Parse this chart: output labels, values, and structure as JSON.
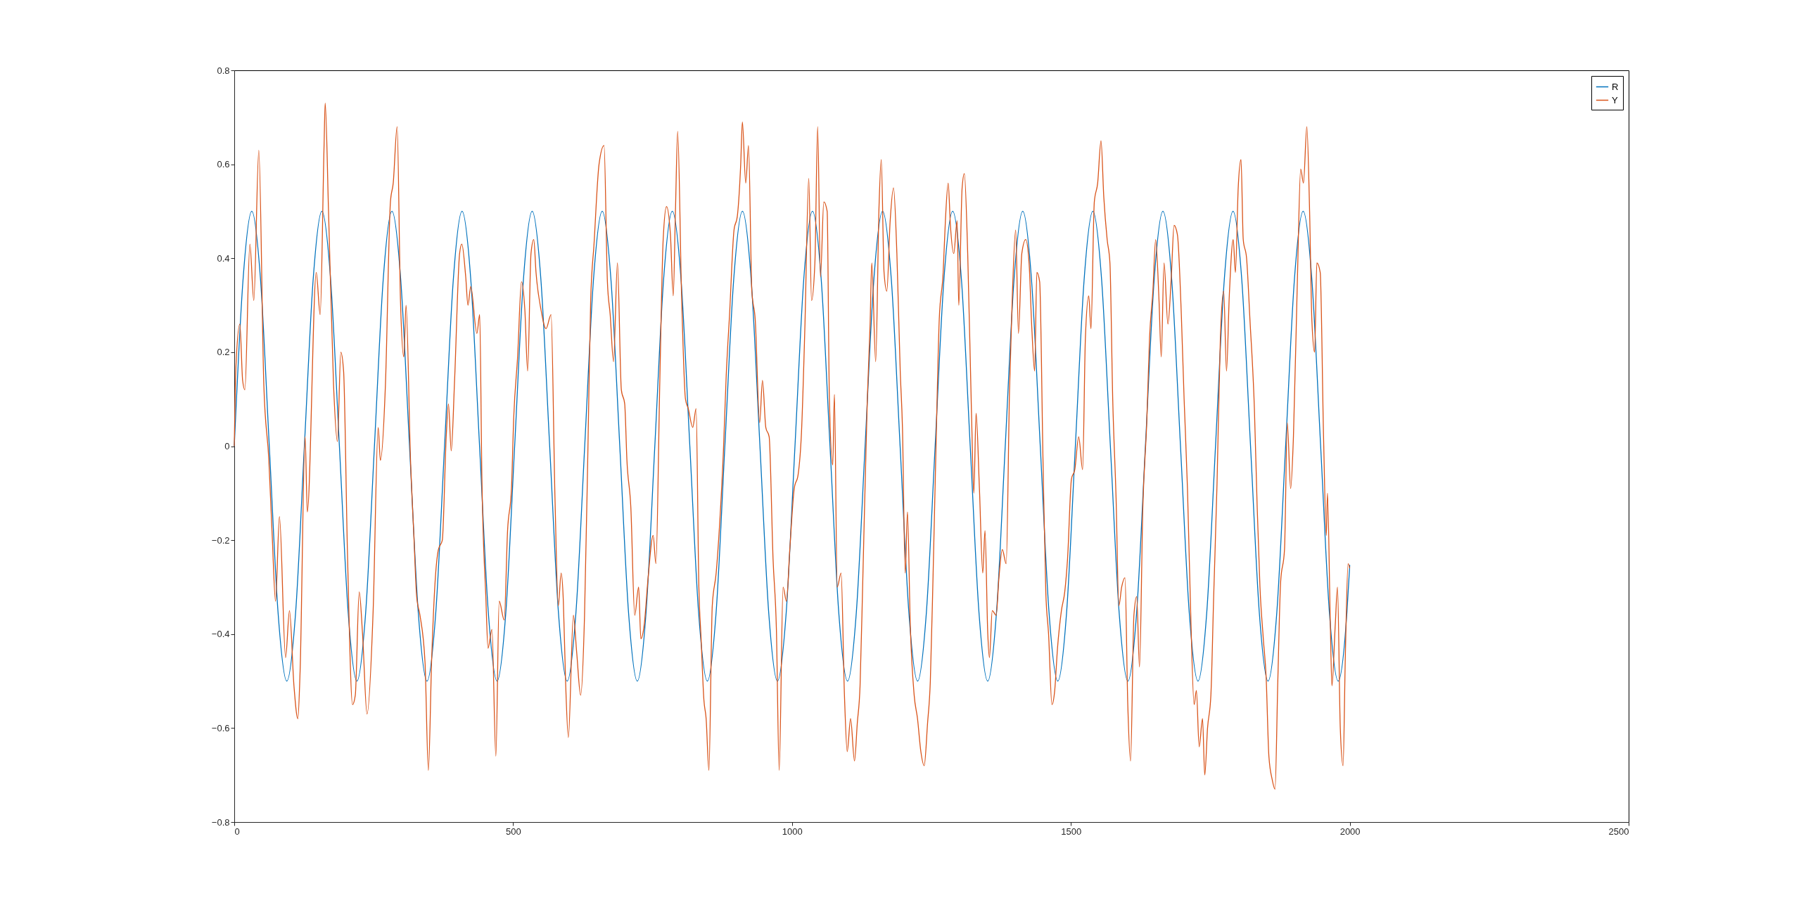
{
  "chart_data": {
    "type": "line",
    "xlim": [
      0,
      2500
    ],
    "ylim": [
      -0.8,
      0.8
    ],
    "xticks": [
      0,
      500,
      1000,
      1500,
      2000,
      2500
    ],
    "yticks": [
      -0.8,
      -0.6,
      -0.4,
      -0.2,
      0,
      0.2,
      0.4,
      0.6,
      0.8
    ],
    "grid": false,
    "legend": "top right",
    "line_style": "solid",
    "marker": "none",
    "series": [
      {
        "name": "R",
        "color": "#0072bd",
        "x": [
          0,
          15.7,
          31.4,
          47.1,
          62.8,
          78.5,
          94.2,
          110.0,
          125.7,
          141.4,
          157.1,
          172.8,
          188.5,
          204.2,
          219.9,
          235.6,
          251.3,
          267.0,
          282.7,
          298.5,
          314.2,
          329.9,
          345.6,
          361.3,
          377.0,
          392.7,
          408.4,
          424.1,
          439.8,
          455.5,
          471.2,
          486.9,
          502.7,
          518.4,
          534.1,
          549.8,
          565.5,
          581.2,
          596.9,
          612.6,
          628.3,
          644.0,
          659.7,
          675.4,
          691.2,
          706.9,
          722.6,
          738.3,
          754.0,
          769.7,
          785.4,
          801.1,
          816.8,
          832.5,
          848.2,
          863.9,
          879.6,
          895.4,
          911.1,
          926.8,
          942.5,
          958.2,
          973.9,
          989.6,
          1005.3,
          1021.0,
          1036.7,
          1052.4,
          1068.1,
          1083.8,
          1099.6,
          1115.3,
          1131.0,
          1146.7,
          1162.4,
          1178.1,
          1193.8,
          1209.5,
          1225.2,
          1240.9,
          1256.6,
          1272.3,
          1288.1,
          1303.8,
          1319.5,
          1335.2,
          1350.9,
          1366.6,
          1382.3,
          1398.0,
          1413.7,
          1429.4,
          1445.1,
          1460.8,
          1476.5,
          1492.3,
          1508.0,
          1523.7,
          1539.4,
          1555.1,
          1570.8,
          1586.5,
          1602.2,
          1617.9,
          1633.6,
          1649.3,
          1665.0,
          1680.8,
          1696.5,
          1712.2,
          1727.9,
          1743.6,
          1759.3,
          1775.0,
          1790.7,
          1806.4,
          1822.1,
          1837.8,
          1853.5,
          1869.2,
          1885.0,
          1900.7,
          1916.4,
          1932.1,
          1947.8,
          1963.5,
          1979.2,
          1994.9,
          2000
        ],
        "values": [
          0,
          0.354,
          0.5,
          0.354,
          0,
          -0.354,
          -0.5,
          -0.354,
          0,
          0.354,
          0.5,
          0.354,
          0,
          -0.354,
          -0.5,
          -0.354,
          0,
          0.354,
          0.5,
          0.354,
          0,
          -0.354,
          -0.5,
          -0.354,
          0,
          0.354,
          0.5,
          0.354,
          0,
          -0.354,
          -0.5,
          -0.354,
          0,
          0.354,
          0.5,
          0.354,
          0,
          -0.354,
          -0.5,
          -0.354,
          0,
          0.354,
          0.5,
          0.354,
          0,
          -0.354,
          -0.5,
          -0.354,
          0,
          0.354,
          0.5,
          0.354,
          0,
          -0.354,
          -0.5,
          -0.354,
          0,
          0.354,
          0.5,
          0.354,
          0,
          -0.354,
          -0.5,
          -0.354,
          0,
          0.354,
          0.5,
          0.354,
          0,
          -0.354,
          -0.5,
          -0.354,
          0,
          0.354,
          0.5,
          0.354,
          0,
          -0.354,
          -0.5,
          -0.354,
          0,
          0.354,
          0.5,
          0.354,
          0,
          -0.354,
          -0.5,
          -0.354,
          0,
          0.354,
          0.5,
          0.354,
          0,
          -0.354,
          -0.5,
          -0.354,
          0,
          0.354,
          0.5,
          0.354,
          0,
          -0.354,
          -0.5,
          -0.354,
          0,
          0.354,
          0.5,
          0.354,
          0,
          -0.354,
          -0.5,
          -0.354,
          0,
          0.354,
          0.5,
          0.354,
          0,
          -0.354,
          -0.5,
          -0.354,
          0,
          0.354,
          0.5,
          0.354,
          0,
          -0.354,
          -0.5,
          -0.354,
          -0.253
        ]
      },
      {
        "name": "Y",
        "color": "#d95319",
        "x": [
          0,
          3,
          10,
          15,
          19,
          28,
          35,
          44,
          53,
          62,
          68,
          74,
          81,
          92,
          99,
          107,
          114,
          118,
          127,
          131,
          147,
          154,
          161,
          163,
          169,
          178,
          185,
          191,
          196,
          203,
          212,
          217,
          224,
          230,
          238,
          249,
          258,
          262,
          271,
          280,
          285,
          292,
          298,
          304,
          308,
          316,
          322,
          327,
          333,
          342,
          348,
          354,
          360,
          366,
          373,
          380,
          384,
          389,
          395,
          404,
          408,
          415,
          419,
          424,
          435,
          440,
          444,
          451,
          455,
          462,
          469,
          475,
          484,
          490,
          497,
          501,
          508,
          515,
          521,
          526,
          532,
          537,
          541,
          550,
          559,
          568,
          575,
          581,
          586,
          590,
          594,
          599,
          608,
          614,
          621,
          628,
          634,
          639,
          645,
          654,
          663,
          669,
          674,
          680,
          687,
          694,
          700,
          704,
          711,
          718,
          725,
          729,
          735,
          742,
          751,
          756,
          763,
          769,
          775,
          782,
          787,
          791,
          795,
          802,
          809,
          814,
          822,
          828,
          833,
          837,
          842,
          846,
          851,
          857,
          864,
          871,
          877,
          882,
          888,
          896,
          902,
          908,
          911,
          917,
          922,
          928,
          934,
          942,
          947,
          953,
          959,
          966,
          972,
          977,
          984,
          990,
          996,
          1004,
          1011,
          1017,
          1023,
          1030,
          1035,
          1041,
          1046,
          1051,
          1057,
          1063,
          1067,
          1073,
          1076,
          1081,
          1088,
          1094,
          1099,
          1105,
          1112,
          1117,
          1122,
          1127,
          1135,
          1140,
          1143,
          1150,
          1156,
          1160,
          1165,
          1170,
          1176,
          1182,
          1188,
          1194,
          1198,
          1203,
          1207,
          1212,
          1219,
          1225,
          1231,
          1237,
          1243,
          1248,
          1253,
          1258,
          1264,
          1271,
          1275,
          1280,
          1284,
          1290,
          1296,
          1299,
          1305,
          1309,
          1315,
          1322,
          1326,
          1330,
          1336,
          1342,
          1346,
          1351,
          1354,
          1359,
          1366,
          1371,
          1377,
          1384,
          1390,
          1395,
          1401,
          1406,
          1412,
          1419,
          1425,
          1430,
          1435,
          1439,
          1444,
          1450,
          1455,
          1460,
          1466,
          1471,
          1476,
          1483,
          1489,
          1494,
          1501,
          1507,
          1514,
          1521,
          1526,
          1532,
          1536,
          1542,
          1548,
          1554,
          1559,
          1565,
          1570,
          1575,
          1581,
          1586,
          1591,
          1597,
          1602,
          1607,
          1613,
          1618,
          1623,
          1629,
          1636,
          1641,
          1647,
          1652,
          1658,
          1662,
          1667,
          1674,
          1680,
          1685,
          1691,
          1698,
          1703,
          1709,
          1714,
          1721,
          1725,
          1730,
          1736,
          1740,
          1745,
          1751,
          1756,
          1762,
          1768,
          1774,
          1779,
          1784,
          1791,
          1795,
          1800,
          1805,
          1809,
          1815,
          1821,
          1829,
          1834,
          1839,
          1845,
          1850,
          1855,
          1861,
          1866,
          1871,
          1876,
          1883,
          1888,
          1894,
          1899,
          1906,
          1912,
          1917,
          1923,
          1928,
          1932,
          1937,
          1941,
          1947,
          1953,
          1958,
          1960,
          1965,
          1968,
          1974,
          1978,
          1983,
          1988,
          1992,
          1997,
          2000
        ],
        "values": [
          0.0,
          0.17,
          0.26,
          0.14,
          0.12,
          0.43,
          0.31,
          0.63,
          0.13,
          -0.03,
          -0.19,
          -0.33,
          -0.15,
          -0.45,
          -0.35,
          -0.51,
          -0.58,
          -0.48,
          0.02,
          -0.14,
          0.37,
          0.28,
          0.64,
          0.73,
          0.5,
          0.13,
          0.01,
          0.2,
          0.16,
          -0.23,
          -0.55,
          -0.53,
          -0.31,
          -0.4,
          -0.57,
          -0.35,
          0.04,
          -0.03,
          0.13,
          0.52,
          0.56,
          0.68,
          0.31,
          0.19,
          0.3,
          -0.03,
          -0.19,
          -0.32,
          -0.36,
          -0.46,
          -0.69,
          -0.45,
          -0.29,
          -0.22,
          -0.2,
          0.02,
          0.09,
          -0.01,
          0.14,
          0.41,
          0.43,
          0.36,
          0.3,
          0.34,
          0.24,
          0.28,
          -0.07,
          -0.32,
          -0.43,
          -0.39,
          -0.66,
          -0.33,
          -0.37,
          -0.18,
          -0.09,
          0.06,
          0.19,
          0.35,
          0.29,
          0.16,
          0.41,
          0.44,
          0.37,
          0.29,
          0.25,
          0.28,
          -0.11,
          -0.34,
          -0.27,
          -0.33,
          -0.5,
          -0.62,
          -0.36,
          -0.44,
          -0.53,
          -0.36,
          -0.01,
          0.31,
          0.43,
          0.6,
          0.64,
          0.35,
          0.28,
          0.18,
          0.39,
          0.12,
          0.09,
          -0.03,
          -0.13,
          -0.36,
          -0.3,
          -0.41,
          -0.38,
          -0.28,
          -0.19,
          -0.25,
          0.14,
          0.44,
          0.51,
          0.45,
          0.32,
          0.5,
          0.67,
          0.32,
          0.1,
          0.08,
          0.04,
          0.08,
          -0.3,
          -0.41,
          -0.54,
          -0.58,
          -0.69,
          -0.34,
          -0.27,
          -0.15,
          -0.01,
          0.15,
          0.28,
          0.46,
          0.49,
          0.6,
          0.69,
          0.56,
          0.64,
          0.33,
          0.27,
          0.05,
          0.14,
          0.04,
          0.02,
          -0.24,
          -0.39,
          -0.69,
          -0.3,
          -0.33,
          -0.22,
          -0.09,
          -0.06,
          0.03,
          0.25,
          0.57,
          0.31,
          0.39,
          0.68,
          0.36,
          0.52,
          0.5,
          0.1,
          -0.04,
          0.11,
          -0.3,
          -0.27,
          -0.53,
          -0.65,
          -0.58,
          -0.67,
          -0.59,
          -0.51,
          -0.28,
          0.1,
          0.26,
          0.39,
          0.18,
          0.51,
          0.61,
          0.37,
          0.33,
          0.48,
          0.55,
          0.41,
          0.16,
          0.04,
          -0.27,
          -0.14,
          -0.38,
          -0.53,
          -0.58,
          -0.65,
          -0.68,
          -0.59,
          -0.5,
          -0.27,
          -0.01,
          0.27,
          0.37,
          0.48,
          0.56,
          0.47,
          0.41,
          0.48,
          0.3,
          0.55,
          0.58,
          0.41,
          0.06,
          -0.1,
          0.07,
          -0.09,
          -0.27,
          -0.18,
          -0.4,
          -0.45,
          -0.35,
          -0.36,
          -0.28,
          -0.22,
          -0.25,
          0.12,
          0.32,
          0.46,
          0.24,
          0.41,
          0.44,
          0.39,
          0.25,
          0.16,
          0.37,
          0.35,
          -0.03,
          -0.31,
          -0.4,
          -0.55,
          -0.52,
          -0.43,
          -0.35,
          -0.31,
          -0.24,
          -0.07,
          -0.05,
          0.02,
          -0.05,
          0.23,
          0.32,
          0.25,
          0.52,
          0.56,
          0.65,
          0.53,
          0.44,
          0.39,
          0.1,
          -0.11,
          -0.34,
          -0.3,
          -0.28,
          -0.55,
          -0.67,
          -0.36,
          -0.32,
          -0.47,
          -0.13,
          0.05,
          0.23,
          0.33,
          0.44,
          0.31,
          0.19,
          0.39,
          0.26,
          0.36,
          0.47,
          0.45,
          0.28,
          0.1,
          -0.09,
          -0.32,
          -0.55,
          -0.52,
          -0.64,
          -0.58,
          -0.7,
          -0.6,
          -0.53,
          -0.32,
          -0.08,
          0.23,
          0.33,
          0.16,
          0.32,
          0.44,
          0.37,
          0.55,
          0.61,
          0.44,
          0.4,
          0.27,
          0.08,
          -0.13,
          -0.3,
          -0.41,
          -0.49,
          -0.66,
          -0.71,
          -0.73,
          -0.5,
          -0.29,
          -0.22,
          0.05,
          -0.09,
          0.02,
          0.35,
          0.59,
          0.56,
          0.68,
          0.5,
          0.27,
          0.2,
          0.39,
          0.37,
          0.02,
          -0.19,
          -0.1,
          -0.37,
          -0.51,
          -0.38,
          -0.3,
          -0.6,
          -0.68,
          -0.45,
          -0.25,
          -0.26
        ]
      }
    ]
  }
}
